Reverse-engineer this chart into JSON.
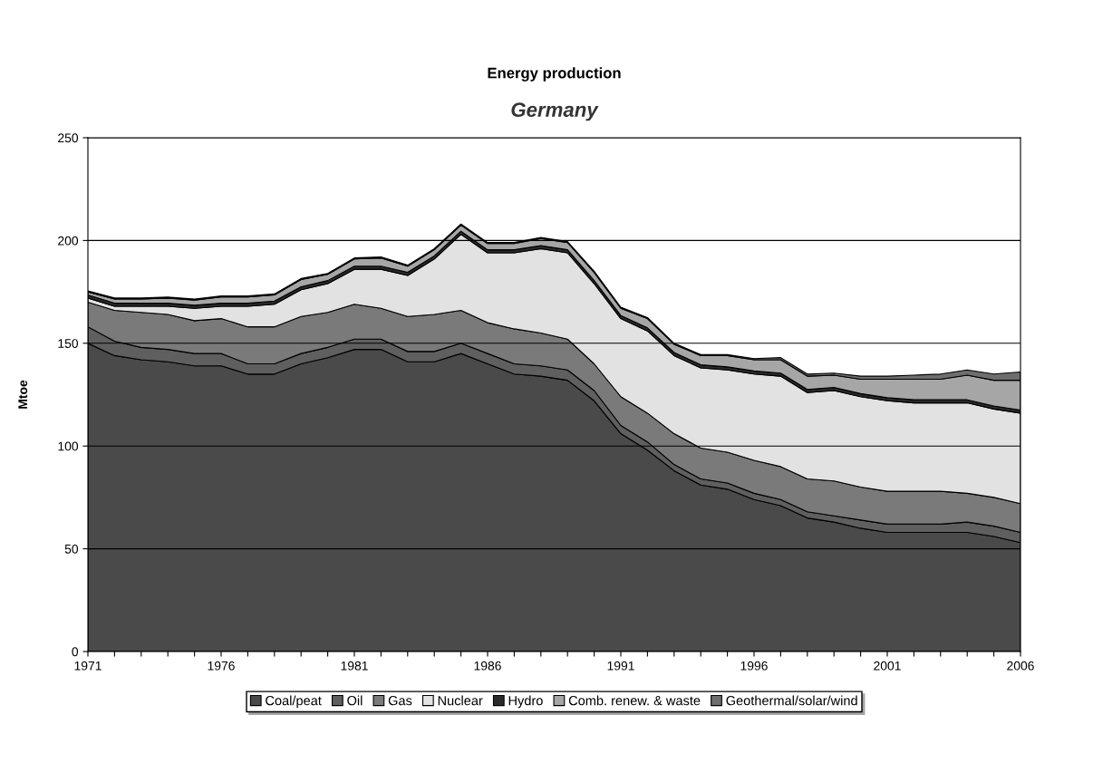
{
  "chart_data": {
    "type": "area",
    "stacked": true,
    "title": "Energy production",
    "subtitle": "Germany",
    "ylabel": "Mtoe",
    "x": [
      1971,
      1972,
      1973,
      1974,
      1975,
      1976,
      1977,
      1978,
      1979,
      1980,
      1981,
      1982,
      1983,
      1984,
      1985,
      1986,
      1987,
      1988,
      1989,
      1990,
      1991,
      1992,
      1993,
      1994,
      1995,
      1996,
      1997,
      1998,
      1999,
      2000,
      2001,
      2002,
      2003,
      2004,
      2005,
      2006
    ],
    "xlim": [
      1971,
      2006
    ],
    "xticks": [
      1971,
      {
        "value": 1972,
        "label": null
      },
      {
        "value": 1973,
        "label": null
      },
      {
        "value": 1974,
        "label": null
      },
      {
        "value": 1975,
        "label": null
      },
      1976,
      {
        "value": 1977,
        "label": null
      },
      {
        "value": 1978,
        "label": null
      },
      {
        "value": 1979,
        "label": null
      },
      {
        "value": 1980,
        "label": null
      },
      1981,
      {
        "value": 1982,
        "label": null
      },
      {
        "value": 1983,
        "label": null
      },
      {
        "value": 1984,
        "label": null
      },
      {
        "value": 1985,
        "label": null
      },
      1986,
      {
        "value": 1987,
        "label": null
      },
      {
        "value": 1988,
        "label": null
      },
      {
        "value": 1989,
        "label": null
      },
      {
        "value": 1990,
        "label": null
      },
      1991,
      {
        "value": 1992,
        "label": null
      },
      {
        "value": 1993,
        "label": null
      },
      {
        "value": 1994,
        "label": null
      },
      {
        "value": 1995,
        "label": null
      },
      1996,
      {
        "value": 1997,
        "label": null
      },
      {
        "value": 1998,
        "label": null
      },
      {
        "value": 1999,
        "label": null
      },
      {
        "value": 2000,
        "label": null
      },
      2001,
      {
        "value": 2002,
        "label": null
      },
      {
        "value": 2003,
        "label": null
      },
      {
        "value": 2004,
        "label": null
      },
      {
        "value": 2005,
        "label": null
      },
      2006
    ],
    "ylim": [
      0,
      250
    ],
    "yticks": [
      0,
      50,
      100,
      150,
      200,
      250
    ],
    "grid": "y",
    "legend": "bottom",
    "series": [
      {
        "name": "Coal/peat",
        "color": "#4a4a4a",
        "values": [
          150,
          144,
          142,
          141,
          139,
          139,
          135,
          135,
          140,
          143,
          147,
          147,
          141,
          141,
          145,
          140,
          135,
          134,
          132,
          122,
          106,
          98,
          88,
          81,
          79,
          74,
          71,
          65,
          63,
          60,
          58,
          58,
          58,
          58,
          56,
          53
        ]
      },
      {
        "name": "Oil",
        "color": "#5f5f5f",
        "values": [
          8,
          7,
          6,
          6,
          6,
          6,
          5,
          5,
          5,
          5,
          5,
          5,
          5,
          5,
          5,
          5,
          5,
          5,
          5,
          5,
          4,
          4,
          3,
          3,
          3,
          3,
          3,
          3,
          3,
          4,
          4,
          4,
          4,
          5,
          5,
          5
        ]
      },
      {
        "name": "Gas",
        "color": "#7a7a7a",
        "values": [
          12,
          15,
          17,
          17,
          16,
          17,
          18,
          18,
          18,
          17,
          17,
          15,
          17,
          18,
          16,
          15,
          17,
          16,
          15,
          13,
          14,
          14,
          15,
          15,
          15,
          16,
          16,
          16,
          17,
          16,
          16,
          16,
          16,
          14,
          14,
          14
        ]
      },
      {
        "name": "Nuclear",
        "color": "#e2e2e2",
        "values": [
          2,
          2,
          3,
          4,
          6,
          6,
          10,
          11,
          13,
          14,
          17,
          19,
          20,
          27,
          37,
          34,
          37,
          41,
          42,
          39,
          38,
          40,
          38,
          39,
          40,
          42,
          44,
          42,
          44,
          44,
          44,
          43,
          43,
          44,
          43,
          44
        ]
      },
      {
        "name": "Hydro",
        "color": "#2a2a2a",
        "values": [
          1.5,
          1.5,
          1.5,
          1.5,
          1.5,
          1.5,
          1.5,
          1.5,
          1.5,
          1.5,
          1.5,
          1.5,
          1.5,
          1.5,
          1.5,
          1.5,
          1.5,
          1.5,
          1.5,
          1.5,
          1.5,
          1.5,
          1.5,
          1.5,
          1.5,
          1.5,
          1.5,
          1.5,
          1.5,
          1.5,
          1.5,
          1.5,
          1.5,
          1.5,
          1.5,
          1.5
        ]
      },
      {
        "name": "Comb. renew. & waste",
        "color": "#a6a6a6",
        "values": [
          1.5,
          2,
          2,
          2.5,
          2.5,
          3,
          3,
          3,
          3.5,
          3,
          3.5,
          4,
          3,
          3,
          3,
          3,
          3,
          3.5,
          3.5,
          4,
          3.5,
          4.5,
          4,
          4.5,
          5.5,
          5.5,
          6.5,
          6.5,
          6,
          7,
          9,
          10,
          10,
          12,
          12.5,
          14.5
        ]
      },
      {
        "name": "Geothermal/solar/wind",
        "color": "#6e6e6e",
        "values": [
          0.5,
          0.5,
          0.5,
          0.5,
          0.5,
          0.5,
          0.5,
          0.5,
          0.5,
          0.5,
          0.5,
          0.5,
          0.5,
          0.5,
          0.5,
          0.5,
          0.5,
          0.5,
          0.5,
          0.5,
          0.5,
          0.5,
          0.5,
          0.5,
          0.5,
          0.5,
          1,
          1,
          1,
          1.5,
          1.5,
          2,
          2.5,
          2.5,
          3,
          4
        ]
      }
    ]
  }
}
